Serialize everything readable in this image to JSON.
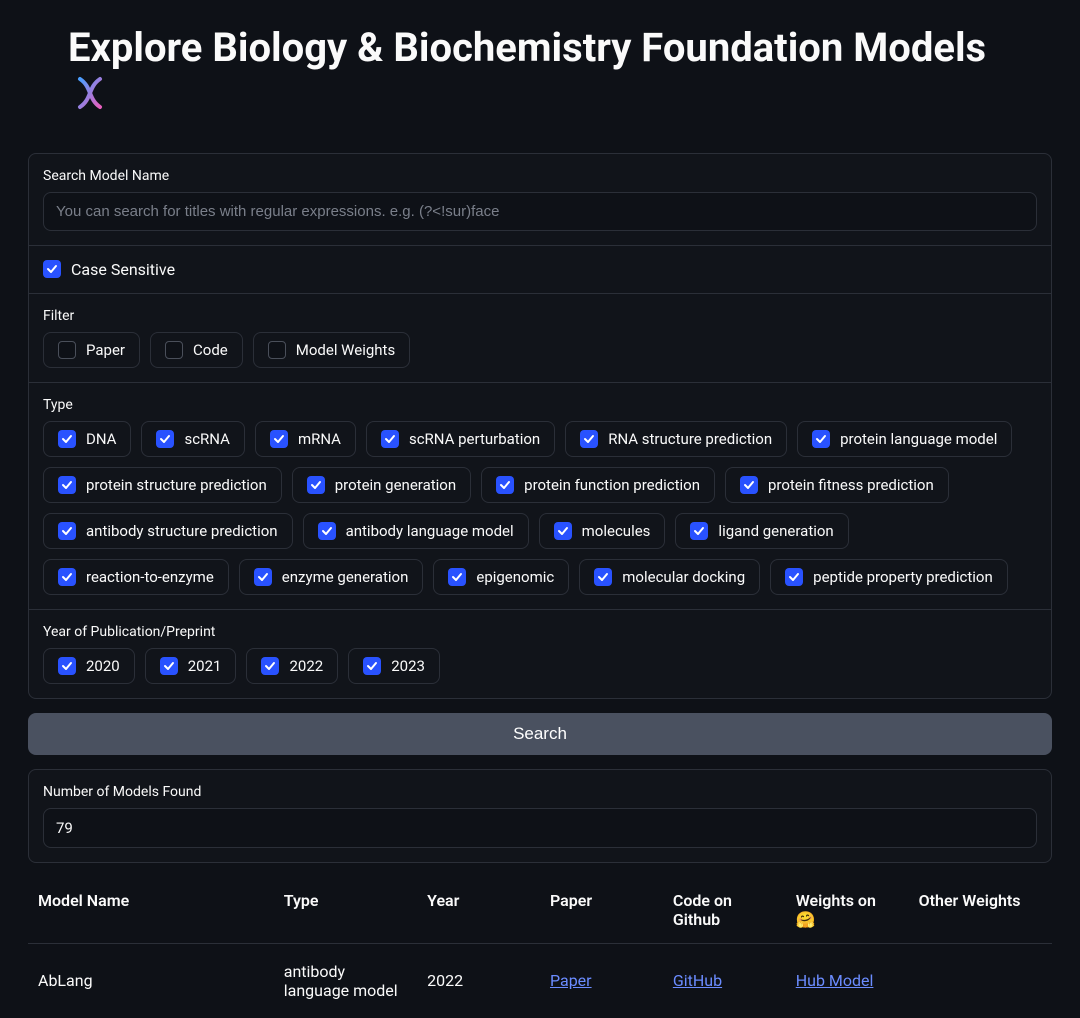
{
  "page": {
    "title": "Explore Biology & Biochemistry Foundation Models",
    "dna_emoji": "🧬"
  },
  "search": {
    "label": "Search Model Name",
    "placeholder": "You can search for titles with regular expressions. e.g. (?<!sur)face",
    "value": "",
    "case_sensitive": {
      "label": "Case Sensitive",
      "checked": true
    }
  },
  "filter": {
    "label": "Filter",
    "items": [
      {
        "label": "Paper",
        "checked": false
      },
      {
        "label": "Code",
        "checked": false
      },
      {
        "label": "Model Weights",
        "checked": false
      }
    ]
  },
  "type": {
    "label": "Type",
    "items": [
      {
        "label": "DNA",
        "checked": true
      },
      {
        "label": "scRNA",
        "checked": true
      },
      {
        "label": "mRNA",
        "checked": true
      },
      {
        "label": "scRNA perturbation",
        "checked": true
      },
      {
        "label": "RNA structure prediction",
        "checked": true
      },
      {
        "label": "protein language model",
        "checked": true
      },
      {
        "label": "protein structure prediction",
        "checked": true
      },
      {
        "label": "protein generation",
        "checked": true
      },
      {
        "label": "protein function prediction",
        "checked": true
      },
      {
        "label": "protein fitness prediction",
        "checked": true
      },
      {
        "label": "antibody structure prediction",
        "checked": true
      },
      {
        "label": "antibody language model",
        "checked": true
      },
      {
        "label": "molecules",
        "checked": true
      },
      {
        "label": "ligand generation",
        "checked": true
      },
      {
        "label": "reaction-to-enzyme",
        "checked": true
      },
      {
        "label": "enzyme generation",
        "checked": true
      },
      {
        "label": "epigenomic",
        "checked": true
      },
      {
        "label": "molecular docking",
        "checked": true
      },
      {
        "label": "peptide property prediction",
        "checked": true
      }
    ]
  },
  "year": {
    "label": "Year of Publication/Preprint",
    "items": [
      {
        "label": "2020",
        "checked": true
      },
      {
        "label": "2021",
        "checked": true
      },
      {
        "label": "2022",
        "checked": true
      },
      {
        "label": "2023",
        "checked": true
      }
    ]
  },
  "search_button": {
    "label": "Search"
  },
  "results": {
    "label": "Number of Models Found",
    "count": "79"
  },
  "table": {
    "columns": [
      "Model Name",
      "Type",
      "Year",
      "Paper",
      "Code on Github",
      "Weights on 🤗",
      "Other Weights"
    ],
    "rows": [
      {
        "name": "AbLang",
        "type": "antibody language model",
        "year": "2022",
        "paper_link": "Paper",
        "code_link": "GitHub",
        "hf_link": "Hub Model",
        "other": ""
      }
    ]
  },
  "colors": {
    "background": "#0e1117",
    "panel_bg": "#11141a",
    "border": "#2b2f38",
    "text": "#fafafa",
    "placeholder": "#7a7f8a",
    "checkbox_checked": "#2952ff",
    "link": "#6b8cff",
    "button_bg": "#4a5160"
  }
}
